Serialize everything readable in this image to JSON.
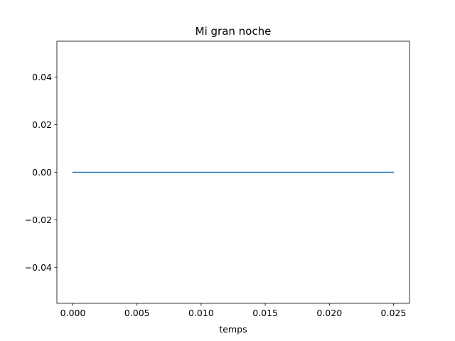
{
  "chart_data": {
    "type": "line",
    "title": "Mi gran noche",
    "xlabel": "temps",
    "ylabel": "",
    "xlim": [
      -0.00125,
      0.02625
    ],
    "ylim": [
      -0.055,
      0.055
    ],
    "xticks": [
      0.0,
      0.005,
      0.01,
      0.015,
      0.02,
      0.025
    ],
    "xtick_labels": [
      "0.000",
      "0.005",
      "0.010",
      "0.015",
      "0.020",
      "0.025"
    ],
    "yticks": [
      -0.04,
      -0.02,
      0.0,
      0.02,
      0.04
    ],
    "ytick_labels": [
      "−0.04",
      "−0.02",
      "0.00",
      "0.02",
      "0.04"
    ],
    "grid": false,
    "series": [
      {
        "color": "#1f77b4",
        "x": [
          0.0,
          0.025
        ],
        "y": [
          0.0,
          0.0
        ]
      }
    ]
  }
}
